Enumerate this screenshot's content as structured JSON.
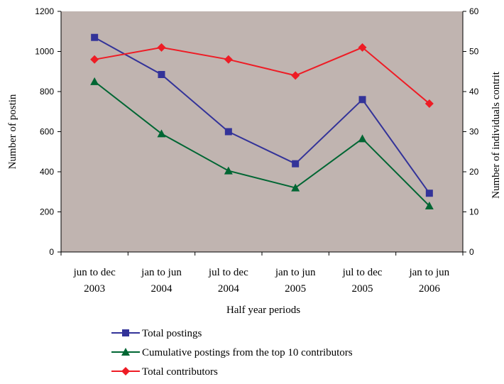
{
  "chart_data": {
    "type": "line",
    "title": "",
    "xlabel": "Half year periods",
    "ylabel": "Number of postin",
    "y2label": "Number of individuals contrit",
    "categories": [
      [
        "jun to dec",
        "2003"
      ],
      [
        "jan to jun",
        "2004"
      ],
      [
        "jul to dec",
        "2004"
      ],
      [
        "jan to jun",
        "2005"
      ],
      [
        "jul to dec",
        "2005"
      ],
      [
        "jan to jun",
        "2006"
      ]
    ],
    "ylim": [
      0,
      1200
    ],
    "yticks": [
      "0",
      "200",
      "400",
      "600",
      "800",
      "1000",
      "1200"
    ],
    "y2lim": [
      0,
      60
    ],
    "y2ticks": [
      "0",
      "10",
      "20",
      "30",
      "40",
      "50",
      "60"
    ],
    "plot_background": "#C0B4B0",
    "grid": false,
    "legend_position": "bottom",
    "series": [
      {
        "name": "Total postings",
        "axis": "left",
        "color": "#333399",
        "marker": "square",
        "values": [
          1070,
          885,
          600,
          440,
          760,
          293
        ]
      },
      {
        "name": "Cumulative postings from the top 10 contributors",
        "axis": "left",
        "color": "#006633",
        "marker": "triangle",
        "values": [
          850,
          590,
          405,
          320,
          565,
          230
        ]
      },
      {
        "name": "Total contributors",
        "axis": "right",
        "color": "#EE1C25",
        "marker": "diamond",
        "values": [
          48,
          51,
          48,
          44,
          51,
          37
        ]
      }
    ]
  }
}
